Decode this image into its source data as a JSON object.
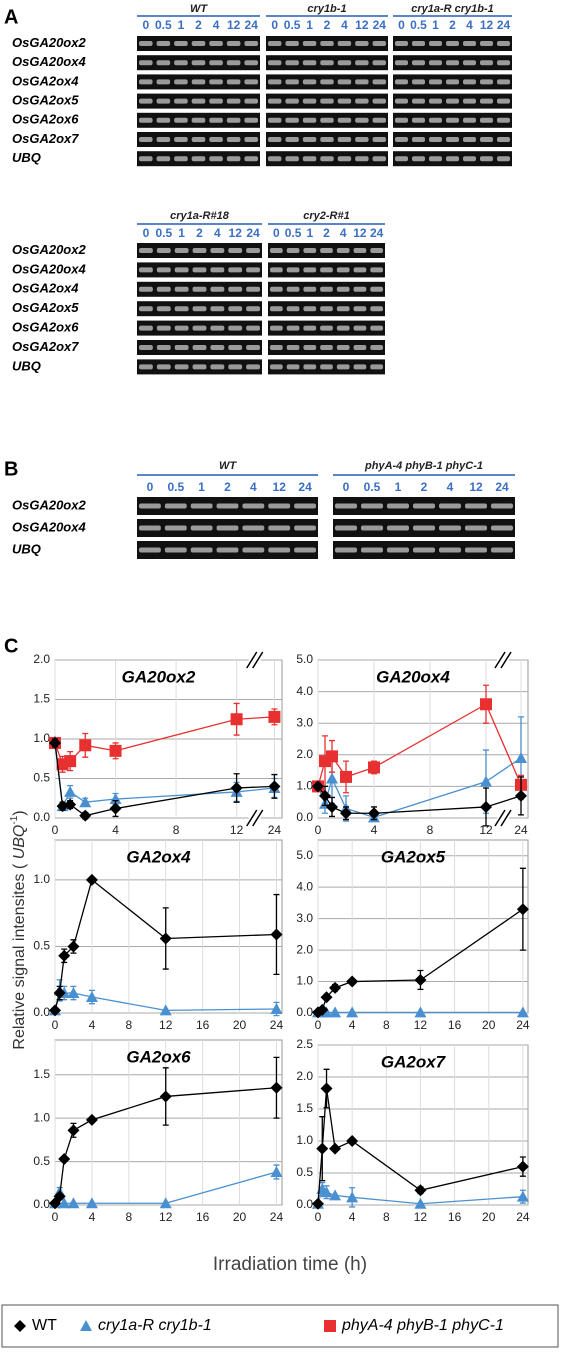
{
  "gel_panels": [
    {
      "label": "A",
      "blocks": [
        {
          "groups": [
            {
              "name": "WT",
              "lanes": [
                "0",
                "0.5",
                "1",
                "2",
                "4",
                "12",
                "24"
              ]
            },
            {
              "name": "cry1b-1",
              "lanes": [
                "0",
                "0.5",
                "1",
                "2",
                "4",
                "12",
                "24"
              ]
            },
            {
              "name": "cry1a-R cry1b-1",
              "lanes": [
                "0",
                "0.5",
                "1",
                "2",
                "4",
                "12",
                "24"
              ]
            }
          ],
          "rows": [
            "OsGA20ox2",
            "OsGA20ox4",
            "OsGA2ox4",
            "OsGA2ox5",
            "OsGA2ox6",
            "OsGA2ox7",
            "UBQ"
          ]
        },
        {
          "groups": [
            {
              "name": "cry1a-R#18",
              "lanes": [
                "0",
                "0.5",
                "1",
                "2",
                "4",
                "12",
                "24"
              ]
            },
            {
              "name": "cry2-R#1",
              "lanes": [
                "0",
                "0.5",
                "1",
                "2",
                "4",
                "12",
                "24"
              ]
            }
          ],
          "rows": [
            "OsGA20ox2",
            "OsGA20ox4",
            "OsGA2ox4",
            "OsGA2ox5",
            "OsGA2ox6",
            "OsGA2ox7",
            "UBQ"
          ]
        }
      ]
    },
    {
      "label": "B",
      "blocks": [
        {
          "groups": [
            {
              "name": "WT",
              "lanes": [
                "0",
                "0.5",
                "1",
                "2",
                "4",
                "12",
                "24"
              ]
            },
            {
              "name": "phyA-4 phyB-1 phyC-1",
              "lanes": [
                "0",
                "0.5",
                "1",
                "2",
                "4",
                "12",
                "24"
              ]
            }
          ],
          "rows": [
            "OsGA20ox2",
            "OsGA20ox4",
            "UBQ"
          ]
        }
      ]
    }
  ],
  "panel_c": {
    "label": "C",
    "y_label": [
      "Relative signal intensites ( ",
      "UBQ",
      "-1",
      ")"
    ],
    "x_label": "Irradiation time (h)"
  },
  "legend": [
    {
      "name": "WT",
      "color": "#000000",
      "marker": "diamond"
    },
    {
      "name": "cry1a-R cry1b-1",
      "color": "#4a90d0",
      "marker": "triangle"
    },
    {
      "name": "phyA-4 phyB-1 phyC-1",
      "color": "#e83030",
      "marker": "square"
    }
  ],
  "chart_data": [
    {
      "type": "line",
      "title": "GA20ox2",
      "x": [
        0,
        0.5,
        1,
        2,
        4,
        12,
        24
      ],
      "xlim": [
        0,
        24.5
      ],
      "x_break": [
        13,
        22.5
      ],
      "xticks": [
        0,
        4,
        8,
        12,
        24
      ],
      "ylim": [
        0,
        2
      ],
      "yticks": [
        {
          "value": 0,
          "label": "0.0"
        },
        {
          "value": 0.5,
          "label": "0.5"
        },
        {
          "value": 1,
          "label": "1.0"
        },
        {
          "value": 1.5,
          "label": "1.5"
        },
        {
          "value": 2,
          "label": "2.0"
        }
      ],
      "grid": true,
      "series": [
        {
          "color": "#4a90d0",
          "marker": "triangle",
          "values": [
            0.97,
            0.15,
            0.33,
            0.2,
            0.24,
            0.33,
            0.38
          ],
          "errors": [
            0.03,
            0.04,
            0.08,
            0.05,
            0.07,
            0.12,
            0.12
          ]
        },
        {
          "color": "#e83030",
          "marker": "square",
          "values": [
            0.95,
            0.68,
            0.72,
            0.92,
            0.85,
            1.25,
            1.28
          ],
          "errors": [
            0.03,
            0.1,
            0.12,
            0.15,
            0.1,
            0.2,
            0.1
          ]
        },
        {
          "color": "#000000",
          "marker": "diamond",
          "values": [
            0.95,
            0.15,
            0.17,
            0.03,
            0.12,
            0.38,
            0.4
          ],
          "errors": [
            0.05,
            0.05,
            0.05,
            0.04,
            0.1,
            0.18,
            0.15
          ]
        }
      ]
    },
    {
      "type": "line",
      "title": "GA20ox4",
      "x": [
        0,
        0.5,
        1,
        2,
        4,
        12,
        24
      ],
      "xlim": [
        0,
        24.5
      ],
      "x_break": [
        13,
        22.5
      ],
      "xticks": [
        0,
        4,
        8,
        12,
        24
      ],
      "ylim": [
        0,
        5
      ],
      "yticks": [
        {
          "value": 0,
          "label": "0.0"
        },
        {
          "value": 1,
          "label": "1.0"
        },
        {
          "value": 2,
          "label": "2.0"
        },
        {
          "value": 3,
          "label": "3.0"
        },
        {
          "value": 4,
          "label": "4.0"
        },
        {
          "value": 5,
          "label": "5.0"
        }
      ],
      "grid": true,
      "series": [
        {
          "color": "#4a90d0",
          "marker": "triangle",
          "values": [
            1.0,
            0.45,
            1.25,
            0.3,
            0.02,
            1.15,
            1.9
          ],
          "errors": [
            0.1,
            0.3,
            0.8,
            0.4,
            0.1,
            1.0,
            1.3
          ]
        },
        {
          "color": "#e83030",
          "marker": "square",
          "values": [
            1.0,
            1.8,
            1.95,
            1.3,
            1.6,
            3.6,
            1.05
          ],
          "errors": [
            0.1,
            0.8,
            0.5,
            0.5,
            0.2,
            0.6,
            0.3
          ]
        },
        {
          "color": "#000000",
          "marker": "diamond",
          "values": [
            1.0,
            0.7,
            0.35,
            0.15,
            0.15,
            0.35,
            0.7
          ],
          "errors": [
            0.1,
            0.3,
            0.3,
            0.2,
            0.2,
            0.6,
            0.6
          ]
        }
      ]
    },
    {
      "type": "line",
      "title": "GA2ox4",
      "x": [
        0,
        0.5,
        1,
        2,
        4,
        12,
        24
      ],
      "xlim": [
        0,
        24.6
      ],
      "xticks": [
        0,
        4,
        8,
        12,
        16,
        20,
        24
      ],
      "ylim": [
        0,
        1.3
      ],
      "yticks": [
        {
          "value": 0,
          "label": "0.0"
        },
        {
          "value": 0.5,
          "label": "0.5"
        },
        {
          "value": 1,
          "label": "1.0"
        }
      ],
      "grid": true,
      "series": [
        {
          "color": "#4a90d0",
          "marker": "triangle",
          "values": [
            0.02,
            0.17,
            0.15,
            0.15,
            0.12,
            0.02,
            0.03
          ],
          "errors": [
            null,
            0.08,
            0.05,
            0.05,
            0.05,
            null,
            0.05
          ]
        },
        {
          "color": "#000000",
          "marker": "diamond",
          "values": [
            0.02,
            0.15,
            0.43,
            0.5,
            1.0,
            0.56,
            0.59
          ],
          "errors": [
            null,
            0.05,
            0.05,
            0.05,
            null,
            0.23,
            0.3
          ]
        }
      ]
    },
    {
      "type": "line",
      "title": "GA2ox5",
      "x": [
        0,
        0.5,
        1,
        2,
        4,
        12,
        24
      ],
      "xlim": [
        0,
        24.6
      ],
      "xticks": [
        0,
        4,
        8,
        12,
        16,
        20,
        24
      ],
      "ylim": [
        0,
        5.5
      ],
      "yticks": [
        {
          "value": 0,
          "label": "0.0"
        },
        {
          "value": 1,
          "label": "1.0"
        },
        {
          "value": 2,
          "label": "2.0"
        },
        {
          "value": 3,
          "label": "3.0"
        },
        {
          "value": 4,
          "label": "4.0"
        },
        {
          "value": 5,
          "label": "5.0"
        }
      ],
      "grid": true,
      "series": [
        {
          "color": "#4a90d0",
          "marker": "triangle",
          "values": [
            0.02,
            0.02,
            0.02,
            0.02,
            0.02,
            0.02,
            0.02
          ],
          "errors": [
            null,
            null,
            null,
            null,
            null,
            null,
            null
          ]
        },
        {
          "color": "#000000",
          "marker": "diamond",
          "values": [
            0.02,
            0.1,
            0.5,
            0.8,
            1.0,
            1.05,
            3.3
          ],
          "errors": [
            null,
            null,
            null,
            0.1,
            null,
            0.3,
            1.3
          ]
        }
      ]
    },
    {
      "type": "line",
      "title": "GA2ox6",
      "x": [
        0,
        0.5,
        1,
        2,
        4,
        12,
        24
      ],
      "xlim": [
        0,
        24.6
      ],
      "xticks": [
        0,
        4,
        8,
        12,
        16,
        20,
        24
      ],
      "ylim": [
        0,
        1.9
      ],
      "yticks": [
        {
          "value": 0,
          "label": "0.0"
        },
        {
          "value": 0.5,
          "label": "0.5"
        },
        {
          "value": 1,
          "label": "1.0"
        },
        {
          "value": 1.5,
          "label": "1.5"
        }
      ],
      "grid": true,
      "series": [
        {
          "color": "#4a90d0",
          "marker": "triangle",
          "values": [
            0.02,
            0.15,
            0.02,
            0.02,
            0.02,
            0.02,
            0.38
          ],
          "errors": [
            null,
            0.05,
            null,
            null,
            null,
            null,
            0.08
          ]
        },
        {
          "color": "#000000",
          "marker": "diamond",
          "values": [
            0.02,
            0.1,
            0.53,
            0.86,
            0.98,
            1.25,
            1.35
          ],
          "errors": [
            null,
            null,
            null,
            0.08,
            null,
            0.33,
            0.35
          ]
        }
      ]
    },
    {
      "type": "line",
      "title": "GA2ox7",
      "x": [
        0,
        0.5,
        1,
        2,
        4,
        12,
        24
      ],
      "xlim": [
        0,
        24.6
      ],
      "xticks": [
        0,
        4,
        8,
        12,
        16,
        20,
        24
      ],
      "ylim": [
        0,
        2.5
      ],
      "yticks": [
        {
          "value": 0,
          "label": "0.0"
        },
        {
          "value": 0.5,
          "label": "0.5"
        },
        {
          "value": 1,
          "label": "1.0"
        },
        {
          "value": 1.5,
          "label": "1.5"
        },
        {
          "value": 2,
          "label": "2.0"
        },
        {
          "value": 2.5,
          "label": "2.5"
        }
      ],
      "grid": true,
      "series": [
        {
          "color": "#4a90d0",
          "marker": "triangle",
          "values": [
            0.02,
            0.25,
            0.2,
            0.15,
            0.12,
            0.02,
            0.13
          ],
          "errors": [
            null,
            0.1,
            0.1,
            null,
            0.15,
            null,
            0.1
          ]
        },
        {
          "color": "#000000",
          "marker": "diamond",
          "values": [
            0.02,
            0.88,
            1.82,
            0.88,
            1.0,
            0.23,
            0.6
          ],
          "errors": [
            null,
            0.5,
            0.3,
            null,
            null,
            0.05,
            0.15
          ]
        }
      ]
    }
  ]
}
